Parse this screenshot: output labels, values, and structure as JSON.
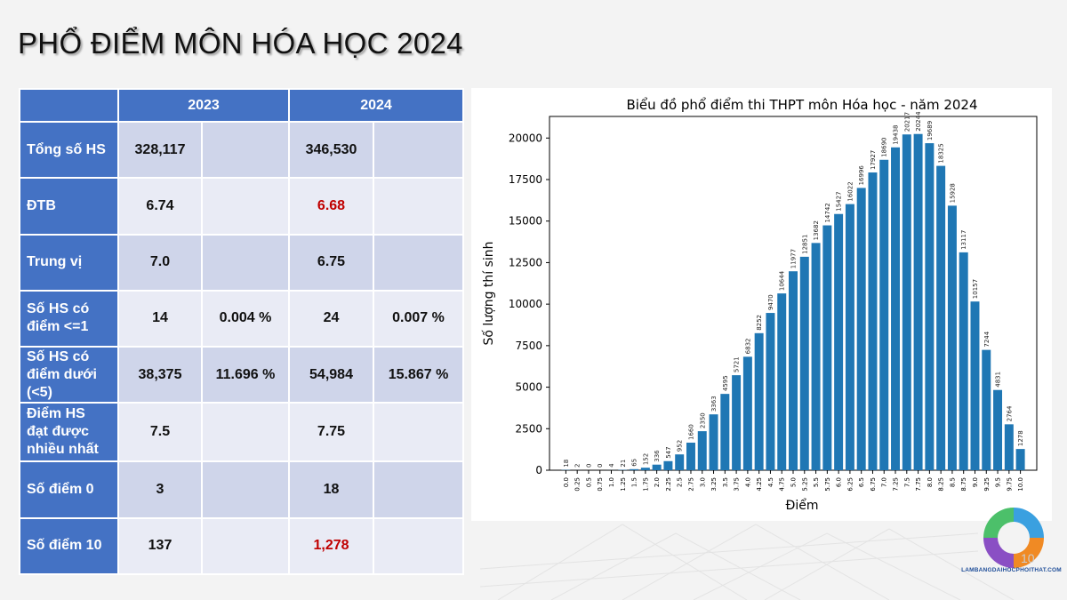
{
  "page": {
    "title": "PHỔ ĐIỂM MÔN HÓA HỌC 2024",
    "page_number": "10",
    "logo_text": "LAMBANGDAIHOCPHOITHAT.COM"
  },
  "table": {
    "years": [
      "2023",
      "2024"
    ],
    "rows": [
      {
        "label": "Tổng số HS",
        "v2023": "328,117",
        "p2023": "",
        "v2024": "346,530",
        "p2024": ""
      },
      {
        "label": "ĐTB",
        "v2023": "6.74",
        "p2023": "",
        "v2024": "6.68",
        "p2024": ""
      },
      {
        "label": "Trung vị",
        "v2023": "7.0",
        "p2023": "",
        "v2024": "6.75",
        "p2024": ""
      },
      {
        "label": "Số HS có điểm <=1",
        "v2023": "14",
        "p2023": "0.004 %",
        "v2024": "24",
        "p2024": "0.007 %"
      },
      {
        "label": "Số HS có điểm dưới (<5)",
        "v2023": "38,375",
        "p2023": "11.696 %",
        "v2024": "54,984",
        "p2024": "15.867 %"
      },
      {
        "label": "Điểm HS đạt được nhiều nhất",
        "v2023": "7.5",
        "p2023": "",
        "v2024": "7.75",
        "p2024": ""
      },
      {
        "label": "Số điểm 0",
        "v2023": "3",
        "p2023": "",
        "v2024": "18",
        "p2024": ""
      },
      {
        "label": "Số điểm 10",
        "v2023": "137",
        "p2023": "",
        "v2024": "1,278",
        "p2024": ""
      }
    ],
    "colors": {
      "header": "#4472c4",
      "cell_dark": "#cfd5ea",
      "cell_light": "#e9ebf5",
      "highlight": "#c00000"
    }
  },
  "chart_data": {
    "type": "bar",
    "title": "Biểu đồ phổ điểm thi THPT môn Hóa học - năm 2024",
    "xlabel": "Điểm",
    "ylabel": "Số lượng thí sinh",
    "categories": [
      "0.0",
      "0.25",
      "0.5",
      "0.75",
      "1.0",
      "1.25",
      "1.5",
      "1.75",
      "2.0",
      "2.25",
      "2.5",
      "2.75",
      "3.0",
      "3.25",
      "3.5",
      "3.75",
      "4.0",
      "4.25",
      "4.5",
      "4.75",
      "5.0",
      "5.25",
      "5.5",
      "5.75",
      "6.0",
      "6.25",
      "6.5",
      "6.75",
      "7.0",
      "7.25",
      "7.5",
      "7.75",
      "8.0",
      "8.25",
      "8.5",
      "8.75",
      "9.0",
      "9.25",
      "9.5",
      "9.75",
      "10.0"
    ],
    "values": [
      18,
      2,
      0,
      0,
      4,
      21,
      65,
      152,
      336,
      547,
      952,
      1660,
      2350,
      3363,
      4595,
      5721,
      6832,
      8252,
      9470,
      10644,
      11977,
      12851,
      13682,
      14742,
      15427,
      16022,
      16996,
      17927,
      18690,
      19438,
      20217,
      20244,
      19689,
      18325,
      15928,
      13117,
      10157,
      7244,
      4831,
      2764,
      1278
    ],
    "yticks": [
      0,
      2500,
      5000,
      7500,
      10000,
      12500,
      15000,
      17500,
      20000
    ],
    "ylim": [
      0,
      21300
    ],
    "bar_color": "#1f77b4",
    "grid": false
  }
}
